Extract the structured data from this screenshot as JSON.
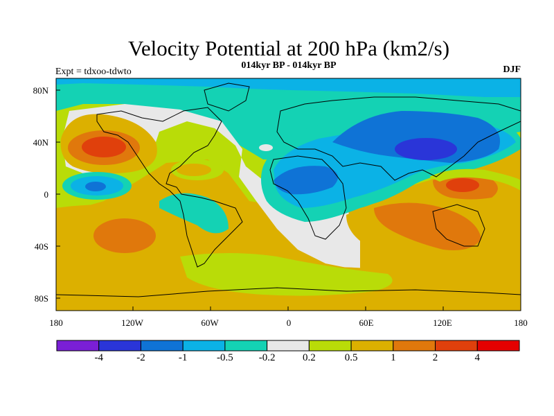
{
  "title": "Velocity Potential at 200 hPa (km2/s)",
  "subtitle": "014kyr BP - 014kyr BP",
  "left_label": "Expt = tdxoo-tdwto",
  "right_label": "DJF",
  "lat_labels": [
    "80N",
    "40N",
    "0",
    "40S",
    "80S"
  ],
  "lon_labels": [
    "180",
    "120W",
    "60W",
    "0",
    "60E",
    "120E",
    "180"
  ],
  "colorbar": {
    "colors": [
      "#7a1fd6",
      "#2a35d8",
      "#0f73d6",
      "#0bb2e6",
      "#14d2b4",
      "#e8e8e8",
      "#b9dc08",
      "#dcb000",
      "#e0780c",
      "#e0400c",
      "#e40000"
    ],
    "labels": [
      "-4",
      "-2",
      "-1",
      "-0.5",
      "-0.2",
      "0.2",
      "0.5",
      "1",
      "2",
      "4"
    ]
  }
}
